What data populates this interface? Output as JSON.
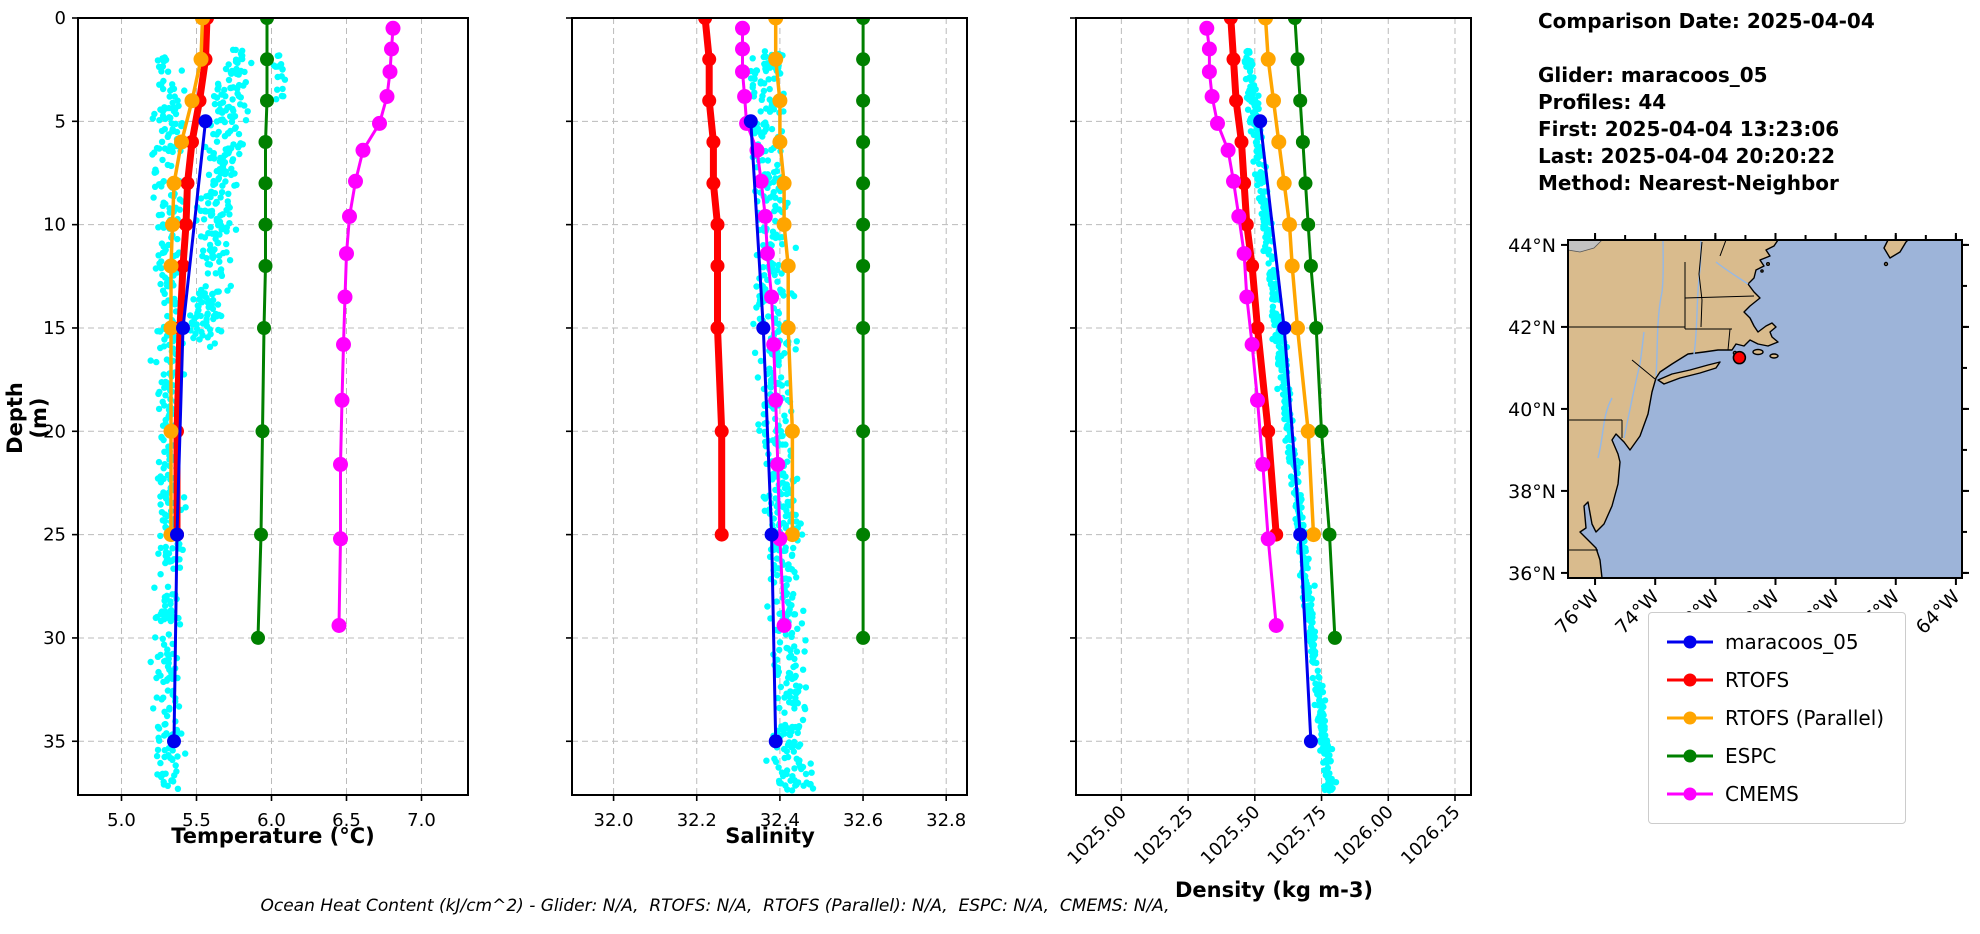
{
  "header": {
    "lines": [
      "Comparison Date: 2025-04-04",
      "",
      "Glider: maracoos_05",
      "Profiles: 44",
      "First: 2025-04-04 13:23:06",
      "Last: 2025-04-04 20:20:22",
      "Method: Nearest-Neighbor"
    ]
  },
  "footer": {
    "text": "Ocean Heat Content (kJ/cm^2) - Glider: N/A,  RTOFS: N/A,  RTOFS (Parallel): N/A,  ESPC: N/A,  CMEMS: N/A,"
  },
  "legend": {
    "items": [
      {
        "label": "maracoos_05",
        "color": "#0000ee"
      },
      {
        "label": "RTOFS",
        "color": "#ff0000"
      },
      {
        "label": "RTOFS (Parallel)",
        "color": "#ffa500"
      },
      {
        "label": "ESPC",
        "color": "#008000"
      },
      {
        "label": "CMEMS",
        "color": "#ff00ff"
      }
    ]
  },
  "map": {
    "lat_ticks": [
      "44°N",
      "42°N",
      "40°N",
      "38°N",
      "36°N"
    ],
    "lon_ticks": [
      "76°W",
      "74°W",
      "72°W",
      "70°W",
      "68°W",
      "66°W",
      "64°W"
    ],
    "colors": {
      "land": "#d9bb8d",
      "ocean": "#9db4d9",
      "lake": "#94b8e6",
      "marker": "#ff0000"
    },
    "marker": {
      "lon": -71.2,
      "lat": 41.25
    }
  },
  "chart_data": {
    "type": "line",
    "ylabel": "Depth (m)",
    "ylim": [
      0,
      37.6
    ],
    "yticks": [
      0,
      5,
      10,
      15,
      20,
      25,
      30,
      35
    ],
    "grid": true,
    "panels": [
      {
        "id": "temperature",
        "xlabel": "Temperature (°C)",
        "xlim": [
          4.71,
          7.31
        ],
        "xticks": [
          5.0,
          5.5,
          6.0,
          6.5,
          7.0
        ],
        "tick_decimals": 1,
        "rotate_ticks": false
      },
      {
        "id": "salinity",
        "xlabel": "Salinity",
        "xlim": [
          31.9,
          32.85
        ],
        "xticks": [
          32.0,
          32.2,
          32.4,
          32.6,
          32.8
        ],
        "tick_decimals": 1,
        "rotate_ticks": false
      },
      {
        "id": "density",
        "xlabel": "Density (kg m-3)",
        "xlim": [
          1024.83,
          1026.31
        ],
        "xticks": [
          1025.0,
          1025.25,
          1025.5,
          1025.75,
          1026.0,
          1026.25
        ],
        "tick_decimals": 2,
        "rotate_ticks": true
      }
    ],
    "series": [
      {
        "name": "maracoos_05",
        "color": "#0000ee",
        "lw": 3,
        "ms": 7,
        "depths": [
          5,
          15,
          25,
          35
        ],
        "temperature": [
          5.56,
          5.41,
          5.37,
          5.35
        ],
        "salinity": [
          32.33,
          32.36,
          32.38,
          32.39
        ],
        "density": [
          1025.52,
          1025.61,
          1025.67,
          1025.71
        ]
      },
      {
        "name": "RTOFS",
        "color": "#ff0000",
        "lw": 7,
        "ms": 7,
        "depths": [
          0,
          2,
          4,
          6,
          8,
          10,
          12,
          15,
          20,
          25
        ],
        "temperature": [
          5.57,
          5.56,
          5.52,
          5.47,
          5.44,
          5.43,
          5.41,
          5.39,
          5.37,
          5.37
        ],
        "salinity": [
          32.22,
          32.23,
          32.23,
          32.24,
          32.24,
          32.25,
          32.25,
          32.25,
          32.26,
          32.26
        ],
        "density": [
          1025.41,
          1025.42,
          1025.43,
          1025.45,
          1025.46,
          1025.47,
          1025.49,
          1025.51,
          1025.55,
          1025.58
        ]
      },
      {
        "name": "RTOFS (Parallel)",
        "color": "#ffa500",
        "lw": 3.5,
        "ms": 7.5,
        "depths": [
          0,
          2,
          4,
          6,
          8,
          10,
          12,
          15,
          20,
          25
        ],
        "temperature": [
          5.54,
          5.53,
          5.47,
          5.4,
          5.35,
          5.34,
          5.33,
          5.33,
          5.33,
          5.33
        ],
        "salinity": [
          32.39,
          32.39,
          32.4,
          32.4,
          32.41,
          32.41,
          32.42,
          32.42,
          32.43,
          32.43
        ],
        "density": [
          1025.54,
          1025.55,
          1025.57,
          1025.59,
          1025.61,
          1025.63,
          1025.64,
          1025.66,
          1025.7,
          1025.72
        ]
      },
      {
        "name": "ESPC",
        "color": "#008000",
        "lw": 3,
        "ms": 7,
        "depths": [
          0,
          2,
          4,
          6,
          8,
          10,
          12,
          15,
          20,
          25,
          30
        ],
        "temperature": [
          5.97,
          5.97,
          5.97,
          5.96,
          5.96,
          5.96,
          5.96,
          5.95,
          5.94,
          5.93,
          5.91
        ],
        "salinity": [
          32.6,
          32.6,
          32.6,
          32.6,
          32.6,
          32.6,
          32.6,
          32.6,
          32.6,
          32.6,
          32.6
        ],
        "density": [
          1025.65,
          1025.66,
          1025.67,
          1025.68,
          1025.69,
          1025.7,
          1025.71,
          1025.73,
          1025.75,
          1025.78,
          1025.8
        ]
      },
      {
        "name": "CMEMS",
        "color": "#ff00ff",
        "lw": 3,
        "ms": 7.5,
        "depths": [
          0.5,
          1.5,
          2.6,
          3.8,
          5.1,
          6.4,
          7.9,
          9.6,
          11.4,
          13.5,
          15.8,
          18.5,
          21.6,
          25.2,
          29.4
        ],
        "temperature": [
          6.81,
          6.8,
          6.79,
          6.77,
          6.72,
          6.61,
          6.56,
          6.52,
          6.5,
          6.49,
          6.48,
          6.47,
          6.46,
          6.46,
          6.45
        ],
        "salinity": [
          32.31,
          32.31,
          32.31,
          32.315,
          32.32,
          32.345,
          32.355,
          32.365,
          32.37,
          32.38,
          32.385,
          32.39,
          32.395,
          32.4,
          32.41
        ],
        "density": [
          1025.32,
          1025.33,
          1025.33,
          1025.34,
          1025.36,
          1025.4,
          1025.42,
          1025.44,
          1025.46,
          1025.47,
          1025.49,
          1025.51,
          1025.53,
          1025.55,
          1025.58
        ]
      }
    ],
    "scatter": {
      "name": "glider raw points",
      "color": "#00ffff",
      "r": 3.2,
      "clusters": {
        "temperature": [
          {
            "count": 430,
            "dmin": 1.8,
            "dmax": 37.4,
            "base": 5.31,
            "slope": 0,
            "noise": 0.085
          },
          {
            "count": 270,
            "dmin": 1.5,
            "dmax": 16,
            "base": 5.79,
            "slope": -0.016,
            "noise": 0.11
          },
          {
            "count": 16,
            "dmin": 1.8,
            "dmax": 5.5,
            "base": 6.06,
            "slope": 0,
            "noise": 0.05
          }
        ],
        "salinity": [
          {
            "count": 560,
            "dmin": 1.5,
            "dmax": 37.4,
            "base": 32.358,
            "slope": 0.0019,
            "noise": 0.041
          }
        ],
        "density": [
          {
            "count": 560,
            "dmin": 1.5,
            "dmax": 37.4,
            "base": 1025.455,
            "slope": 0.0087,
            "noise": 0.019
          }
        ]
      }
    }
  }
}
